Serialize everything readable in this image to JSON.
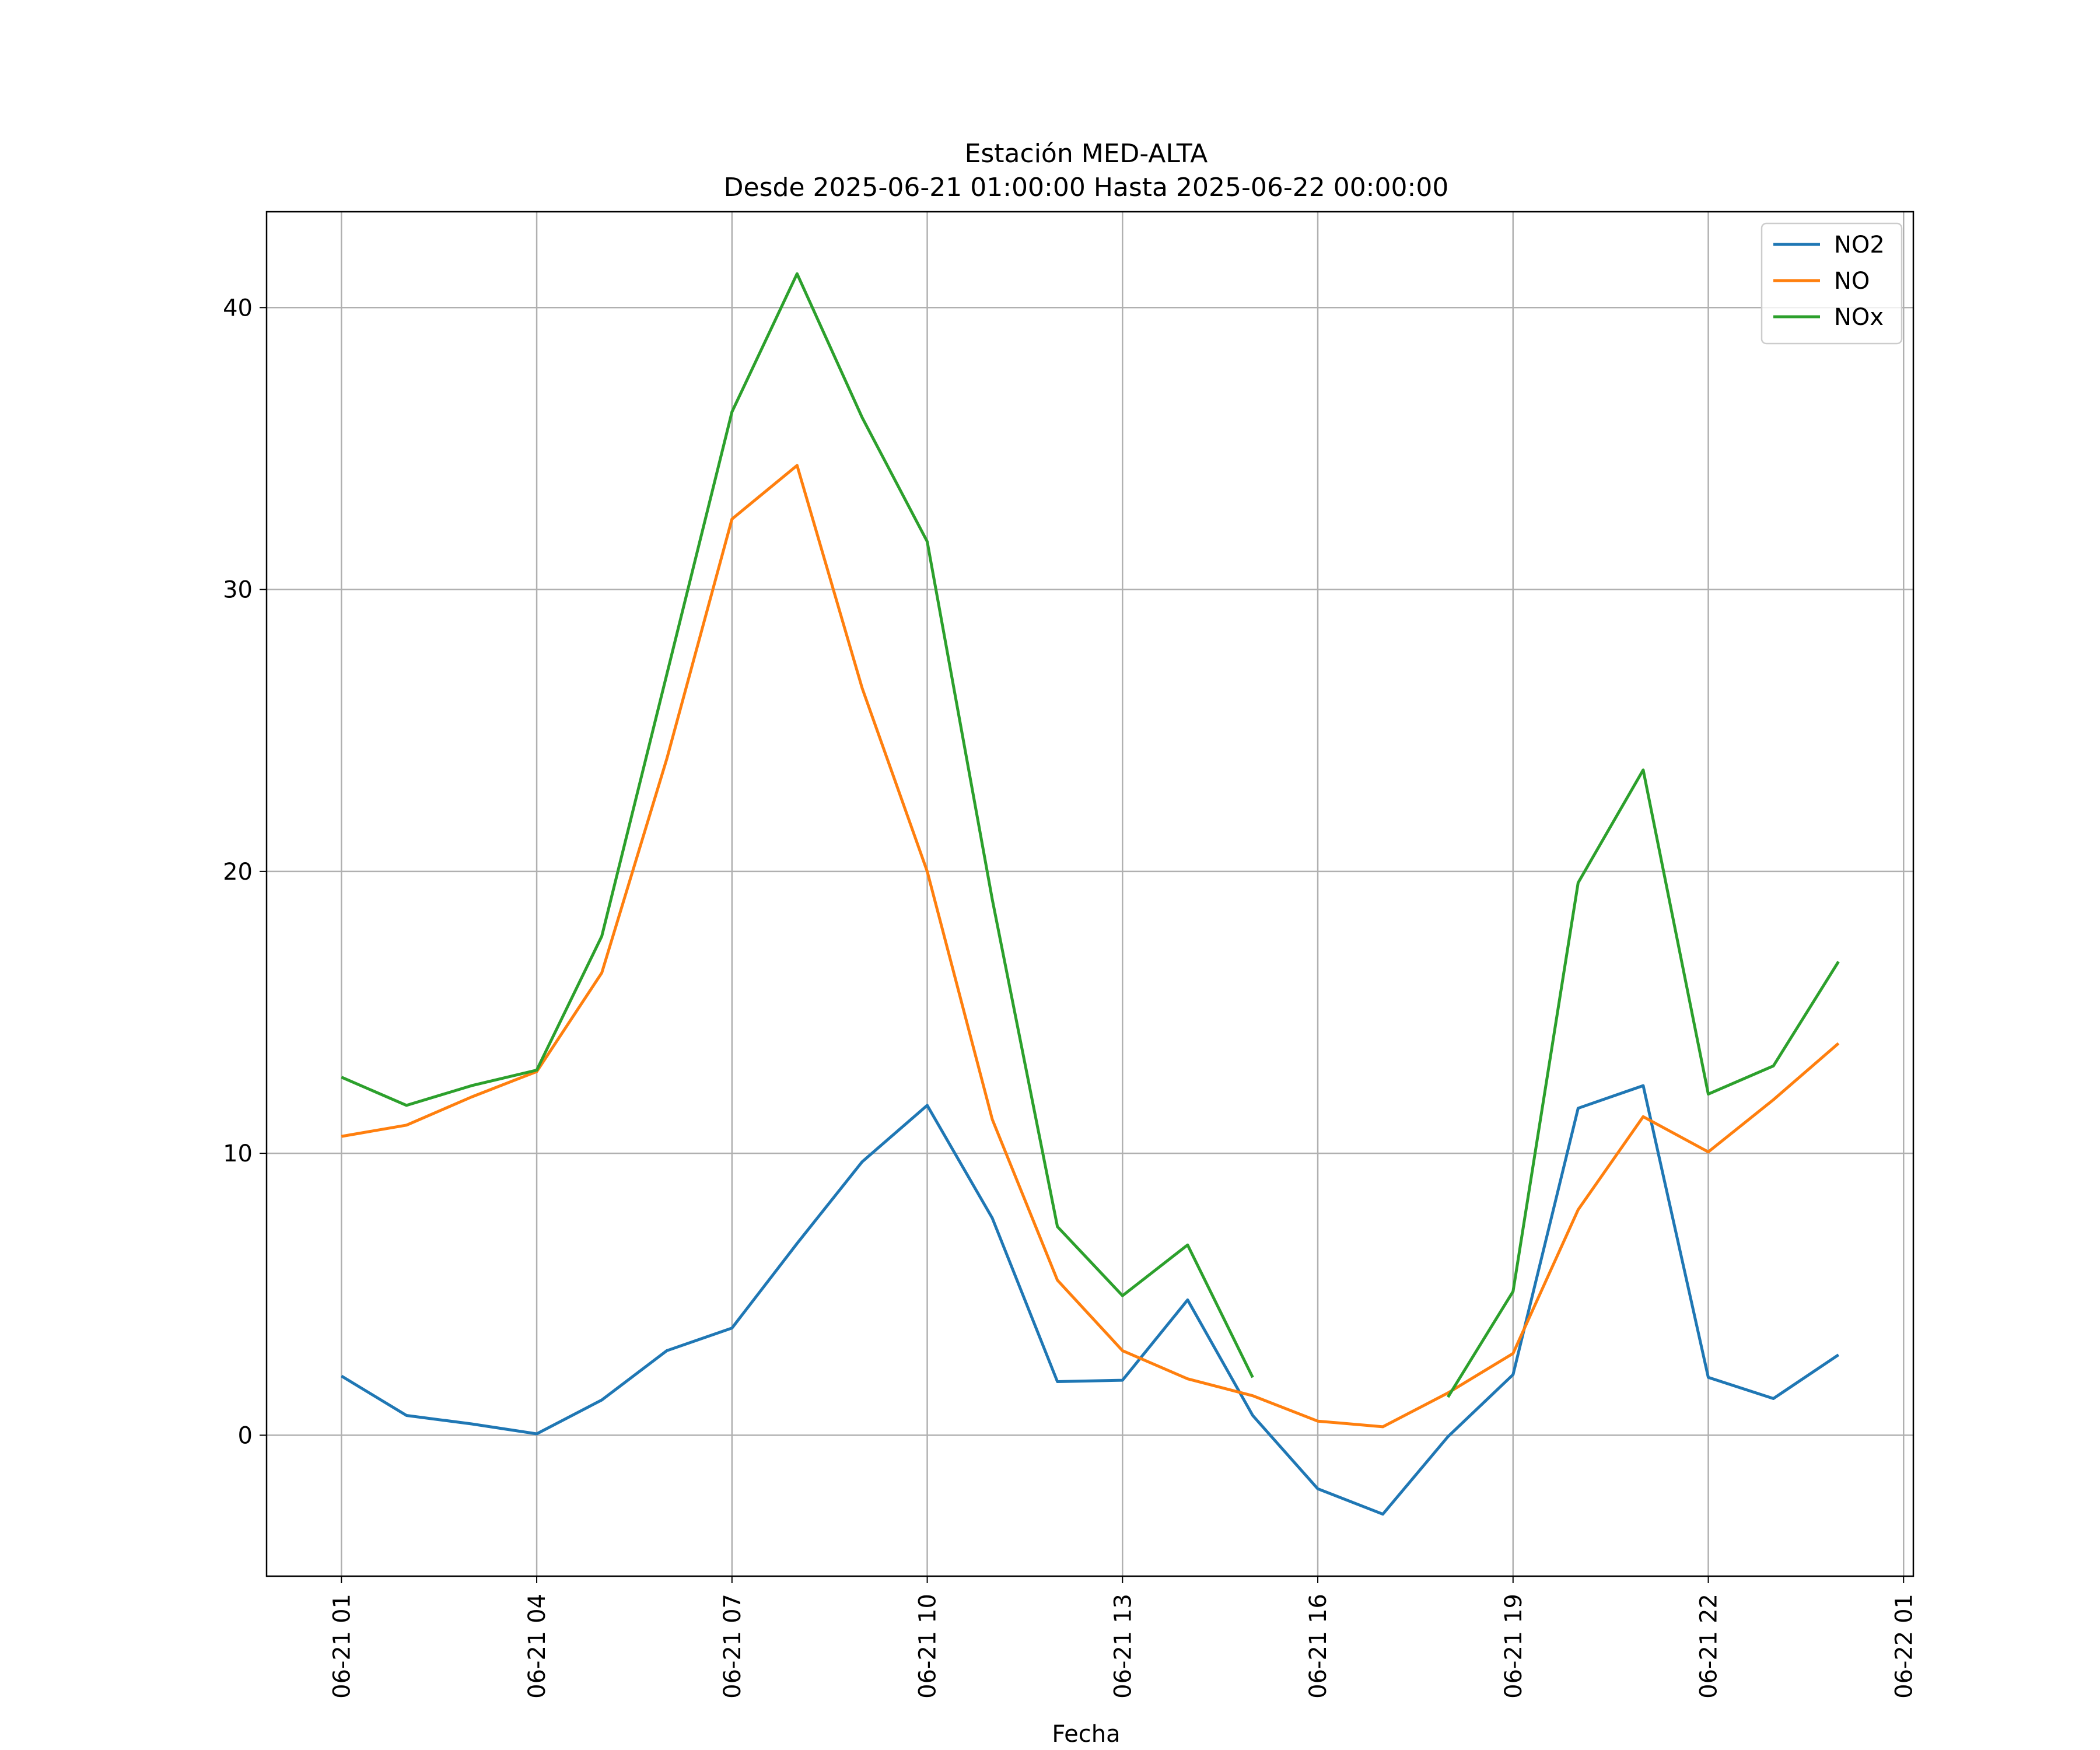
{
  "chart_data": {
    "type": "line",
    "title": "Estación MED-ALTA",
    "subtitle": "Desde 2025-06-21 01:00:00 Hasta 2025-06-22 00:00:00",
    "xlabel": "Fecha",
    "ylabel": "",
    "x": [
      "06-21 01",
      "06-21 02",
      "06-21 03",
      "06-21 04",
      "06-21 05",
      "06-21 06",
      "06-21 07",
      "06-21 08",
      "06-21 09",
      "06-21 10",
      "06-21 11",
      "06-21 12",
      "06-21 13",
      "06-21 14",
      "06-21 15",
      "06-21 16",
      "06-21 17",
      "06-21 18",
      "06-21 19",
      "06-21 20",
      "06-21 21",
      "06-21 22",
      "06-21 23",
      "06-22 00"
    ],
    "x_ticks": [
      "06-21 01",
      "06-21 04",
      "06-21 07",
      "06-21 10",
      "06-21 13",
      "06-21 16",
      "06-21 19",
      "06-21 22",
      "06-22 01"
    ],
    "y_ticks": [
      0,
      10,
      20,
      30,
      40
    ],
    "ylim": [
      -5,
      43.4
    ],
    "grid": true,
    "legend_position": "top-right",
    "series": [
      {
        "name": "NO2",
        "color": "#1f77b4",
        "values": [
          2.1,
          0.7,
          0.4,
          0.05,
          1.25,
          3.0,
          3.8,
          6.8,
          9.7,
          11.7,
          7.7,
          1.9,
          1.95,
          4.8,
          0.7,
          -1.9,
          -2.8,
          -0.05,
          2.15,
          11.6,
          12.4,
          2.05,
          1.3,
          2.85
        ]
      },
      {
        "name": "NO",
        "color": "#ff7f0e",
        "values": [
          10.6,
          11.0,
          12.0,
          12.9,
          16.4,
          24.0,
          32.5,
          34.4,
          26.5,
          20.0,
          11.2,
          5.5,
          3.0,
          2.0,
          1.4,
          0.5,
          0.3,
          1.5,
          2.9,
          8.0,
          11.3,
          10.05,
          11.9,
          13.9
        ]
      },
      {
        "name": "NOx",
        "color": "#2ca02c",
        "values": [
          12.7,
          11.7,
          12.4,
          12.95,
          17.7,
          27.0,
          36.3,
          41.2,
          36.1,
          31.7,
          19.0,
          7.4,
          4.95,
          6.75,
          2.05,
          null,
          null,
          1.35,
          5.1,
          19.6,
          23.6,
          12.1,
          13.1,
          16.8
        ]
      }
    ]
  }
}
